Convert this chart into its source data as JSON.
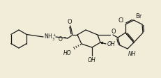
{
  "background_color": "#f2edd8",
  "line_color": "#1a1a1a",
  "line_width": 0.9,
  "figsize": [
    2.31,
    1.13
  ],
  "dpi": 100,
  "xlim": [
    0,
    231
  ],
  "ylim": [
    0,
    113
  ],
  "font_size_label": 5.0,
  "font_size_atom": 5.5
}
